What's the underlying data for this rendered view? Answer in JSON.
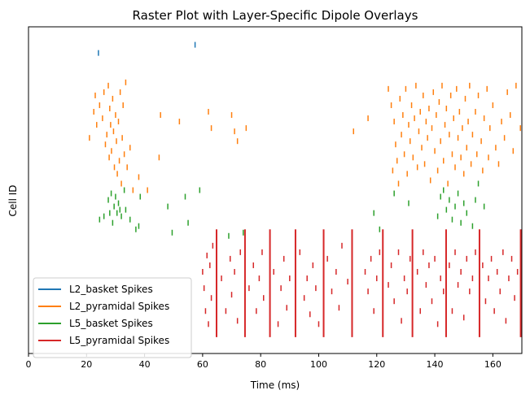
{
  "chart_data": {
    "type": "raster",
    "title": "Raster Plot with Layer-Specific Dipole Overlays",
    "xlabel": "Time (ms)",
    "ylabel": "Cell ID",
    "xlim": [
      0,
      170
    ],
    "xticks": [
      0,
      20,
      40,
      60,
      80,
      100,
      120,
      140,
      160
    ],
    "yticks_shown": false,
    "legend_position": "lower-left",
    "series": [
      {
        "name": "L2_basket Spikes",
        "color": "#1f77b4",
        "spikes": [
          [
            24.1,
            0.92
          ],
          [
            57.4,
            0.945
          ]
        ]
      },
      {
        "name": "L2_pyramidal Spikes",
        "color": "#ff7f0e",
        "spikes": [
          [
            21.0,
            0.66
          ],
          [
            22.5,
            0.74
          ],
          [
            23.0,
            0.79
          ],
          [
            23.5,
            0.7
          ],
          [
            24.5,
            0.76
          ],
          [
            25.5,
            0.72
          ],
          [
            26.0,
            0.8
          ],
          [
            26.5,
            0.64
          ],
          [
            27.0,
            0.67
          ],
          [
            27.5,
            0.82
          ],
          [
            27.8,
            0.6
          ],
          [
            28.0,
            0.75
          ],
          [
            28.3,
            0.7
          ],
          [
            28.6,
            0.62
          ],
          [
            29.0,
            0.78
          ],
          [
            29.3,
            0.68
          ],
          [
            29.6,
            0.57
          ],
          [
            30.0,
            0.73
          ],
          [
            30.3,
            0.65
          ],
          [
            30.6,
            0.55
          ],
          [
            31.0,
            0.71
          ],
          [
            31.3,
            0.59
          ],
          [
            31.6,
            0.8
          ],
          [
            32.0,
            0.52
          ],
          [
            32.3,
            0.66
          ],
          [
            32.6,
            0.76
          ],
          [
            33.0,
            0.61
          ],
          [
            33.5,
            0.83
          ],
          [
            34.0,
            0.57
          ],
          [
            35.0,
            0.63
          ],
          [
            36.0,
            0.5
          ],
          [
            38.0,
            0.54
          ],
          [
            41.0,
            0.5
          ],
          [
            45.0,
            0.6
          ],
          [
            45.5,
            0.73
          ],
          [
            52.0,
            0.71
          ],
          [
            62.0,
            0.74
          ],
          [
            63.0,
            0.69
          ],
          [
            70.0,
            0.73
          ],
          [
            71.0,
            0.68
          ],
          [
            72.0,
            0.65
          ],
          [
            75.0,
            0.69
          ],
          [
            112.0,
            0.68
          ],
          [
            117.0,
            0.72
          ],
          [
            124.0,
            0.81
          ],
          [
            125.0,
            0.76
          ],
          [
            125.5,
            0.56
          ],
          [
            126.0,
            0.71
          ],
          [
            126.5,
            0.64
          ],
          [
            127.0,
            0.59
          ],
          [
            127.5,
            0.52
          ],
          [
            128.0,
            0.78
          ],
          [
            128.5,
            0.67
          ],
          [
            129.0,
            0.73
          ],
          [
            129.5,
            0.61
          ],
          [
            130.0,
            0.81
          ],
          [
            130.5,
            0.55
          ],
          [
            131.0,
            0.7
          ],
          [
            131.5,
            0.65
          ],
          [
            132.0,
            0.76
          ],
          [
            132.5,
            0.6
          ],
          [
            133.0,
            0.72
          ],
          [
            133.5,
            0.82
          ],
          [
            134.0,
            0.57
          ],
          [
            134.5,
            0.68
          ],
          [
            135.0,
            0.74
          ],
          [
            135.5,
            0.63
          ],
          [
            136.0,
            0.79
          ],
          [
            136.5,
            0.58
          ],
          [
            137.0,
            0.71
          ],
          [
            137.5,
            0.66
          ],
          [
            138.0,
            0.75
          ],
          [
            138.5,
            0.53
          ],
          [
            139.0,
            0.69
          ],
          [
            139.5,
            0.8
          ],
          [
            140.0,
            0.62
          ],
          [
            140.5,
            0.73
          ],
          [
            141.0,
            0.56
          ],
          [
            141.5,
            0.77
          ],
          [
            142.0,
            0.65
          ],
          [
            142.5,
            0.82
          ],
          [
            143.0,
            0.59
          ],
          [
            143.5,
            0.7
          ],
          [
            144.0,
            0.75
          ],
          [
            144.5,
            0.52
          ],
          [
            145.0,
            0.67
          ],
          [
            145.5,
            0.79
          ],
          [
            146.0,
            0.61
          ],
          [
            146.5,
            0.72
          ],
          [
            147.0,
            0.57
          ],
          [
            147.5,
            0.81
          ],
          [
            148.0,
            0.66
          ],
          [
            148.5,
            0.74
          ],
          [
            149.0,
            0.6
          ],
          [
            149.5,
            0.69
          ],
          [
            150.0,
            0.55
          ],
          [
            150.5,
            0.78
          ],
          [
            151.0,
            0.63
          ],
          [
            151.5,
            0.71
          ],
          [
            152.0,
            0.82
          ],
          [
            152.5,
            0.58
          ],
          [
            153.0,
            0.67
          ],
          [
            154.0,
            0.74
          ],
          [
            154.5,
            0.61
          ],
          [
            155.0,
            0.79
          ],
          [
            156.0,
            0.65
          ],
          [
            156.5,
            0.56
          ],
          [
            157.0,
            0.72
          ],
          [
            158.0,
            0.81
          ],
          [
            158.5,
            0.6
          ],
          [
            159.0,
            0.69
          ],
          [
            160.0,
            0.76
          ],
          [
            161.0,
            0.63
          ],
          [
            162.0,
            0.58
          ],
          [
            163.0,
            0.71
          ],
          [
            164.0,
            0.66
          ],
          [
            165.0,
            0.8
          ],
          [
            166.0,
            0.73
          ],
          [
            167.0,
            0.62
          ],
          [
            168.0,
            0.82
          ],
          [
            169.5,
            0.69
          ]
        ]
      },
      {
        "name": "L5_basket Spikes",
        "color": "#2ca02c",
        "spikes": [
          [
            24.5,
            0.41
          ],
          [
            26.0,
            0.42
          ],
          [
            27.5,
            0.47
          ],
          [
            28.0,
            0.43
          ],
          [
            28.5,
            0.49
          ],
          [
            29.0,
            0.4
          ],
          [
            29.5,
            0.45
          ],
          [
            30.0,
            0.48
          ],
          [
            30.5,
            0.43
          ],
          [
            31.0,
            0.46
          ],
          [
            31.5,
            0.44
          ],
          [
            32.0,
            0.42
          ],
          [
            33.0,
            0.5
          ],
          [
            33.5,
            0.44
          ],
          [
            35.0,
            0.41
          ],
          [
            37.0,
            0.38
          ],
          [
            38.0,
            0.39
          ],
          [
            38.5,
            0.48
          ],
          [
            48.0,
            0.45
          ],
          [
            49.5,
            0.37
          ],
          [
            54.0,
            0.48
          ],
          [
            55.0,
            0.4
          ],
          [
            59.0,
            0.5
          ],
          [
            69.0,
            0.36
          ],
          [
            74.0,
            0.37
          ],
          [
            119.0,
            0.43
          ],
          [
            121.0,
            0.38
          ],
          [
            126.0,
            0.49
          ],
          [
            131.0,
            0.46
          ],
          [
            141.0,
            0.42
          ],
          [
            142.0,
            0.48
          ],
          [
            143.0,
            0.5
          ],
          [
            144.0,
            0.44
          ],
          [
            145.0,
            0.47
          ],
          [
            146.0,
            0.41
          ],
          [
            147.0,
            0.45
          ],
          [
            148.0,
            0.49
          ],
          [
            149.0,
            0.4
          ],
          [
            150.0,
            0.46
          ],
          [
            151.0,
            0.43
          ],
          [
            153.0,
            0.39
          ],
          [
            154.0,
            0.47
          ],
          [
            155.0,
            0.52
          ],
          [
            157.0,
            0.45
          ]
        ]
      },
      {
        "name": "L5_pyramidal Spikes",
        "color": "#d62728",
        "sync_times": [
          64.8,
          74.6,
          83.2,
          92.0,
          101.7,
          111.5,
          122.1,
          132.3,
          143.9,
          155.4,
          169.6
        ],
        "sync_range": [
          0.05,
          0.38
        ],
        "spikes": [
          [
            60.0,
            0.25
          ],
          [
            60.5,
            0.2
          ],
          [
            61.0,
            0.13
          ],
          [
            61.5,
            0.3
          ],
          [
            62.0,
            0.09
          ],
          [
            62.5,
            0.27
          ],
          [
            63.0,
            0.17
          ],
          [
            63.5,
            0.33
          ],
          [
            66.5,
            0.23
          ],
          [
            68.0,
            0.13
          ],
          [
            69.5,
            0.29
          ],
          [
            70.0,
            0.18
          ],
          [
            71.0,
            0.25
          ],
          [
            72.0,
            0.1
          ],
          [
            73.0,
            0.31
          ],
          [
            76.0,
            0.2
          ],
          [
            77.5,
            0.27
          ],
          [
            78.5,
            0.13
          ],
          [
            79.5,
            0.23
          ],
          [
            80.5,
            0.31
          ],
          [
            81.0,
            0.17
          ],
          [
            84.5,
            0.25
          ],
          [
            86.0,
            0.09
          ],
          [
            87.0,
            0.2
          ],
          [
            88.0,
            0.29
          ],
          [
            89.0,
            0.14
          ],
          [
            90.0,
            0.23
          ],
          [
            93.5,
            0.31
          ],
          [
            95.0,
            0.17
          ],
          [
            96.0,
            0.23
          ],
          [
            97.0,
            0.12
          ],
          [
            98.0,
            0.27
          ],
          [
            99.0,
            0.2
          ],
          [
            100.0,
            0.09
          ],
          [
            103.0,
            0.29
          ],
          [
            104.5,
            0.19
          ],
          [
            106.0,
            0.25
          ],
          [
            107.0,
            0.14
          ],
          [
            108.0,
            0.33
          ],
          [
            110.0,
            0.22
          ],
          [
            116.0,
            0.25
          ],
          [
            117.0,
            0.19
          ],
          [
            118.0,
            0.29
          ],
          [
            119.0,
            0.13
          ],
          [
            120.0,
            0.23
          ],
          [
            121.0,
            0.31
          ],
          [
            124.0,
            0.21
          ],
          [
            125.0,
            0.27
          ],
          [
            126.0,
            0.16
          ],
          [
            127.5,
            0.31
          ],
          [
            128.5,
            0.1
          ],
          [
            129.5,
            0.23
          ],
          [
            130.5,
            0.19
          ],
          [
            131.5,
            0.29
          ],
          [
            134.0,
            0.25
          ],
          [
            135.0,
            0.13
          ],
          [
            136.0,
            0.31
          ],
          [
            137.0,
            0.21
          ],
          [
            138.0,
            0.27
          ],
          [
            139.0,
            0.16
          ],
          [
            140.0,
            0.29
          ],
          [
            141.0,
            0.09
          ],
          [
            142.0,
            0.23
          ],
          [
            143.0,
            0.19
          ],
          [
            145.0,
            0.27
          ],
          [
            146.0,
            0.13
          ],
          [
            147.0,
            0.31
          ],
          [
            148.0,
            0.21
          ],
          [
            149.0,
            0.25
          ],
          [
            150.0,
            0.11
          ],
          [
            151.0,
            0.29
          ],
          [
            152.0,
            0.19
          ],
          [
            153.0,
            0.23
          ],
          [
            154.0,
            0.31
          ],
          [
            156.5,
            0.27
          ],
          [
            157.5,
            0.16
          ],
          [
            158.5,
            0.23
          ],
          [
            159.5,
            0.29
          ],
          [
            160.5,
            0.13
          ],
          [
            161.5,
            0.25
          ],
          [
            162.5,
            0.19
          ],
          [
            163.5,
            0.31
          ],
          [
            164.5,
            0.1
          ],
          [
            165.5,
            0.23
          ],
          [
            166.5,
            0.29
          ],
          [
            167.5,
            0.17
          ],
          [
            168.5,
            0.25
          ]
        ]
      }
    ]
  }
}
